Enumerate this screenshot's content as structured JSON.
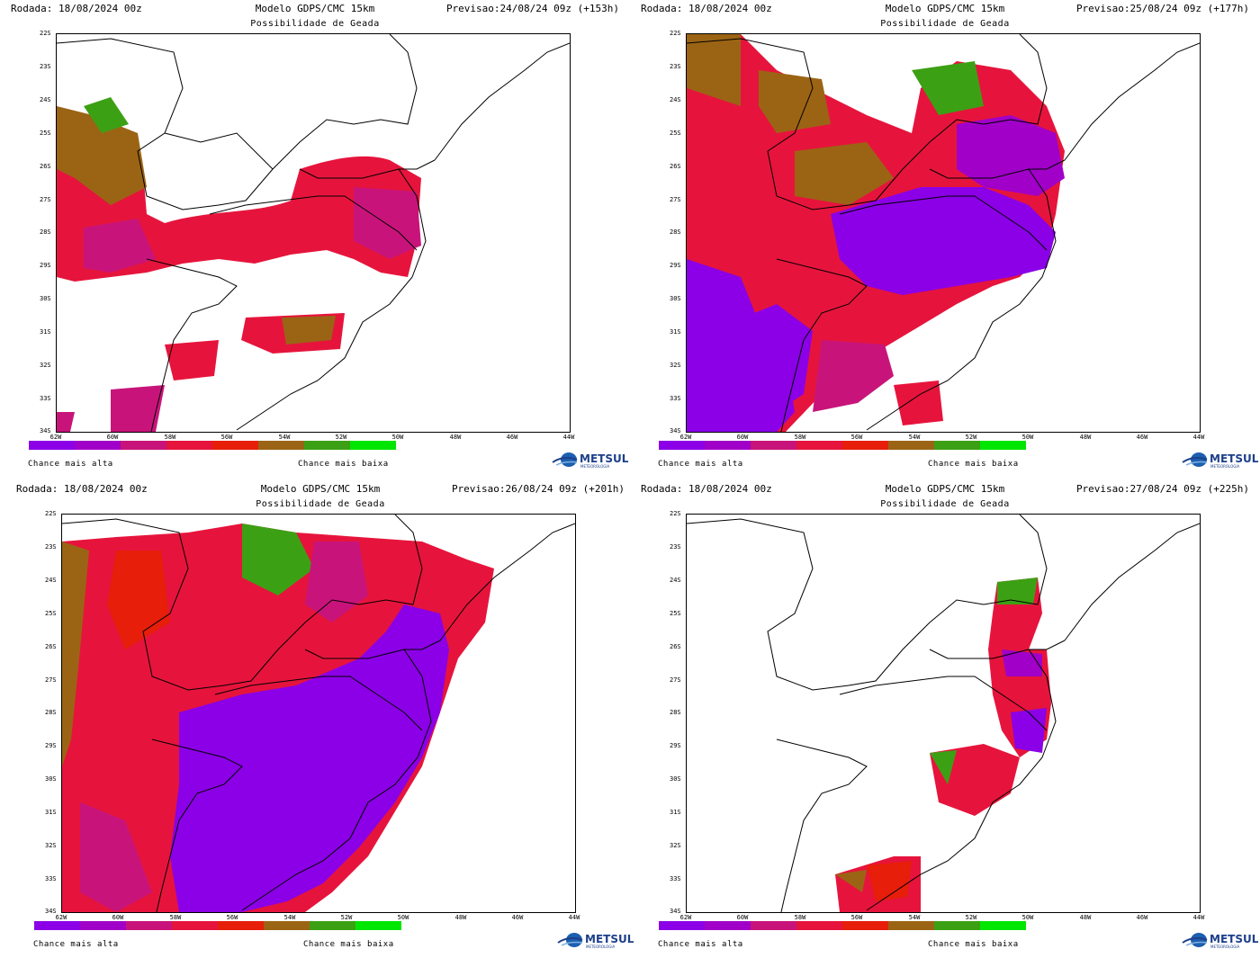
{
  "colors": {
    "scale": [
      "#8b00e6",
      "#a000c8",
      "#c8147a",
      "#e6143c",
      "#e61e0a",
      "#9b6414",
      "#3ca014",
      "#00e600"
    ],
    "brand": "#1d3f8a"
  },
  "panels": [
    {
      "run": "Rodada: 18/08/2024 00z",
      "model": "Modelo GDPS/CMC 15km",
      "forecast": "Previsao:24/08/24 09z (+153h)",
      "subtitle": "Possibilidade de Geada"
    },
    {
      "run": "Rodada: 18/08/2024 00z",
      "model": "Modelo GDPS/CMC 15km",
      "forecast": "Previsao:25/08/24 09z (+177h)",
      "subtitle": "Possibilidade de Geada"
    },
    {
      "run": "Rodada: 18/08/2024 00z",
      "model": "Modelo GDPS/CMC 15km",
      "forecast": "Previsao:26/08/24 09z (+201h)",
      "subtitle": "Possibilidade de Geada"
    },
    {
      "run": "Rodada: 18/08/2024 00z",
      "model": "Modelo GDPS/CMC 15km",
      "forecast": "Previsao:27/08/24 09z (+225h)",
      "subtitle": "Possibilidade de Geada"
    }
  ],
  "axes": {
    "lat": [
      "22S",
      "23S",
      "24S",
      "25S",
      "26S",
      "27S",
      "28S",
      "29S",
      "30S",
      "31S",
      "32S",
      "33S",
      "34S"
    ],
    "lon": [
      "62W",
      "60W",
      "58W",
      "56W",
      "54W",
      "52W",
      "50W",
      "48W",
      "46W",
      "44W"
    ]
  },
  "legend": {
    "high": "Chance mais alta",
    "low": "Chance mais baixa"
  },
  "logo": {
    "name": "METSUL",
    "tagline": "METEOROLOGIA"
  }
}
